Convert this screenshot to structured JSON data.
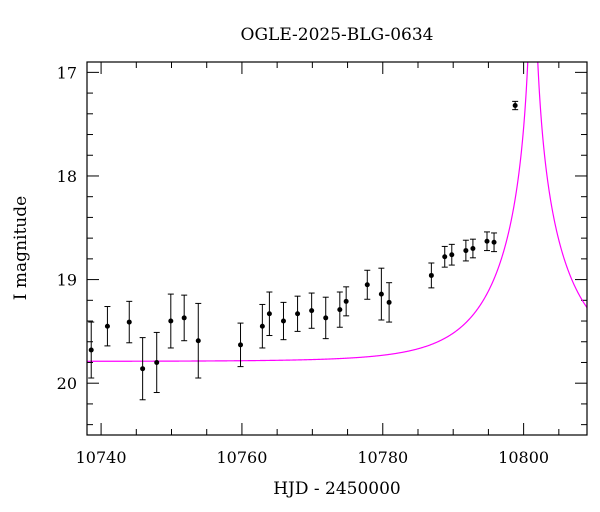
{
  "chart_data": {
    "type": "scatter",
    "title": "OGLE-2025-BLG-0634",
    "xlabel": "HJD - 2450000",
    "ylabel": "I magnitude",
    "xlim": [
      10738,
      10809
    ],
    "ylim": [
      20.5,
      16.9
    ],
    "y_inverted": true,
    "grid": false,
    "x_ticks": [
      10740,
      10760,
      10780,
      10800
    ],
    "y_ticks": [
      17,
      18,
      19,
      20
    ],
    "x_tick_labels": [
      "10740",
      "10760",
      "10780",
      "10800"
    ],
    "y_tick_labels": [
      "17",
      "18",
      "19",
      "20"
    ],
    "model_color": "#ff00ff",
    "point_color": "#000000",
    "model": {
      "baseline_mag": 19.79,
      "peak_time": 10801.3,
      "time_scale_days": 10.4,
      "impact_parameter": 0.015
    },
    "series": [
      {
        "points": [
          {
            "x": 10738.6,
            "y": 19.68,
            "err": 0.27
          },
          {
            "x": 10740.9,
            "y": 19.45,
            "err": 0.19
          },
          {
            "x": 10744.0,
            "y": 19.41,
            "err": 0.2
          },
          {
            "x": 10745.9,
            "y": 19.86,
            "err": 0.3
          },
          {
            "x": 10747.9,
            "y": 19.8,
            "err": 0.29
          },
          {
            "x": 10749.9,
            "y": 19.4,
            "err": 0.26
          },
          {
            "x": 10751.8,
            "y": 19.37,
            "err": 0.22
          },
          {
            "x": 10753.8,
            "y": 19.59,
            "err": 0.36
          },
          {
            "x": 10759.8,
            "y": 19.63,
            "err": 0.21
          },
          {
            "x": 10762.9,
            "y": 19.45,
            "err": 0.21
          },
          {
            "x": 10763.9,
            "y": 19.33,
            "err": 0.21
          },
          {
            "x": 10765.9,
            "y": 19.4,
            "err": 0.18
          },
          {
            "x": 10767.9,
            "y": 19.33,
            "err": 0.17
          },
          {
            "x": 10769.9,
            "y": 19.3,
            "err": 0.17
          },
          {
            "x": 10771.9,
            "y": 19.37,
            "err": 0.2
          },
          {
            "x": 10773.9,
            "y": 19.29,
            "err": 0.17
          },
          {
            "x": 10774.8,
            "y": 19.21,
            "err": 0.14
          },
          {
            "x": 10777.8,
            "y": 19.05,
            "err": 0.14
          },
          {
            "x": 10779.8,
            "y": 19.14,
            "err": 0.25
          },
          {
            "x": 10780.9,
            "y": 19.22,
            "err": 0.19
          },
          {
            "x": 10786.9,
            "y": 18.96,
            "err": 0.12
          },
          {
            "x": 10788.8,
            "y": 18.78,
            "err": 0.1
          },
          {
            "x": 10789.8,
            "y": 18.76,
            "err": 0.1
          },
          {
            "x": 10791.8,
            "y": 18.72,
            "err": 0.1
          },
          {
            "x": 10792.8,
            "y": 18.7,
            "err": 0.09
          },
          {
            "x": 10794.8,
            "y": 18.63,
            "err": 0.09
          },
          {
            "x": 10795.8,
            "y": 18.64,
            "err": 0.09
          },
          {
            "x": 10798.8,
            "y": 17.32,
            "err": 0.04
          }
        ]
      }
    ]
  }
}
